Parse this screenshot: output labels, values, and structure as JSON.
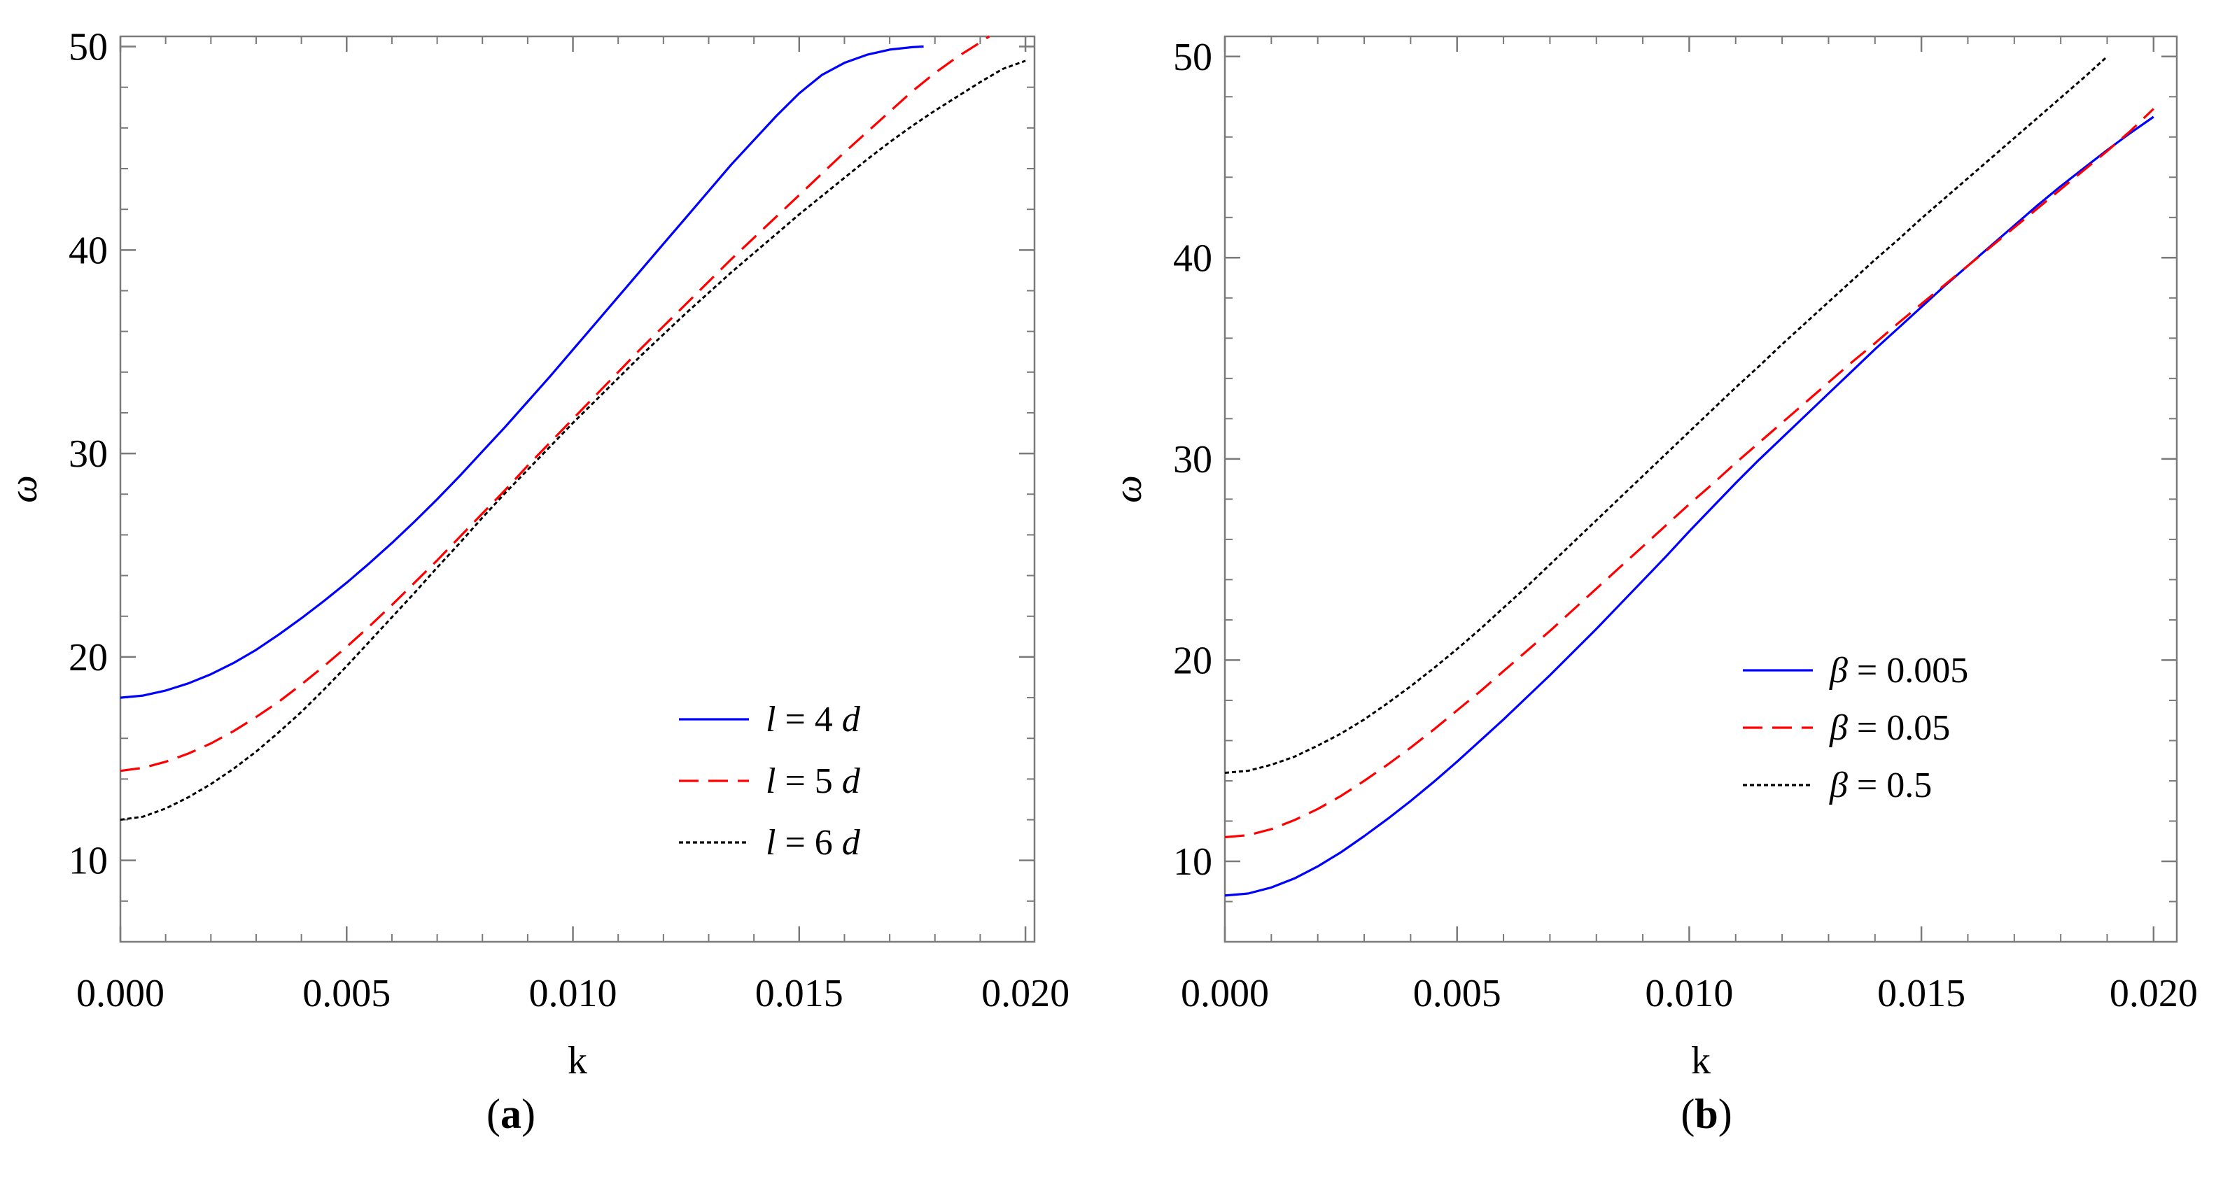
{
  "chart_data": [
    {
      "type": "line",
      "panel_id": "a",
      "caption": "(a)",
      "caption_letter": "a",
      "xlabel": "k",
      "ylabel": "ω",
      "xlim": [
        0.0,
        0.0202
      ],
      "ylim": [
        6.0,
        50.5
      ],
      "xticks": [
        0.0,
        0.005,
        0.01,
        0.015,
        0.02
      ],
      "xtick_labels": [
        "0.000",
        "0.005",
        "0.010",
        "0.015",
        "0.020"
      ],
      "yticks": [
        10,
        20,
        30,
        40,
        50
      ],
      "ytick_labels": [
        "10",
        "20",
        "30",
        "40",
        "50"
      ],
      "legend_position": "lower-right",
      "series": [
        {
          "name": "l = 4 d",
          "var": "l",
          "value": "4",
          "unit": "d",
          "color": "#0000ff",
          "style": "solid",
          "x": [
            0.0,
            0.0005,
            0.001,
            0.0015,
            0.002,
            0.0025,
            0.003,
            0.0035,
            0.004,
            0.0045,
            0.005,
            0.0055,
            0.006,
            0.0065,
            0.007,
            0.0075,
            0.008,
            0.0085,
            0.009,
            0.0095,
            0.01,
            0.0105,
            0.011,
            0.0115,
            0.012,
            0.0125,
            0.013,
            0.0135,
            0.014,
            0.0145,
            0.015,
            0.0155,
            0.016,
            0.0165,
            0.017,
            0.0175,
            0.01775
          ],
          "values": [
            18.0,
            18.1,
            18.35,
            18.7,
            19.15,
            19.7,
            20.35,
            21.1,
            21.9,
            22.75,
            23.65,
            24.6,
            25.6,
            26.65,
            27.75,
            28.9,
            30.1,
            31.3,
            32.55,
            33.8,
            35.1,
            36.4,
            37.7,
            39.0,
            40.3,
            41.6,
            42.9,
            44.2,
            45.4,
            46.6,
            47.7,
            48.6,
            49.2,
            49.6,
            49.85,
            49.97,
            50.0
          ]
        },
        {
          "name": "l = 5 d",
          "var": "l",
          "value": "5",
          "unit": "d",
          "color": "#ff0000",
          "style": "dashed",
          "x": [
            0.0,
            0.0005,
            0.001,
            0.0015,
            0.002,
            0.0025,
            0.003,
            0.0035,
            0.004,
            0.0045,
            0.005,
            0.0055,
            0.006,
            0.0065,
            0.007,
            0.0075,
            0.008,
            0.0085,
            0.009,
            0.0095,
            0.01,
            0.0105,
            0.011,
            0.0115,
            0.012,
            0.0125,
            0.013,
            0.0135,
            0.014,
            0.0145,
            0.015,
            0.0155,
            0.016,
            0.0165,
            0.017,
            0.0175,
            0.018,
            0.0185,
            0.019,
            0.0192
          ],
          "values": [
            14.4,
            14.55,
            14.85,
            15.25,
            15.75,
            16.35,
            17.05,
            17.8,
            18.65,
            19.55,
            20.5,
            21.5,
            22.55,
            23.65,
            24.75,
            25.9,
            27.05,
            28.2,
            29.4,
            30.55,
            31.7,
            32.85,
            34.0,
            35.15,
            36.25,
            37.35,
            38.45,
            39.55,
            40.6,
            41.65,
            42.7,
            43.75,
            44.8,
            45.8,
            46.8,
            47.8,
            48.7,
            49.5,
            50.2,
            50.5
          ]
        },
        {
          "name": "l = 6 d",
          "var": "l",
          "value": "6",
          "unit": "d",
          "color": "#000000",
          "style": "dotted",
          "x": [
            0.0,
            0.0005,
            0.001,
            0.0015,
            0.002,
            0.0025,
            0.003,
            0.0035,
            0.004,
            0.0045,
            0.005,
            0.0055,
            0.006,
            0.0065,
            0.007,
            0.0075,
            0.008,
            0.0085,
            0.009,
            0.0095,
            0.01,
            0.0105,
            0.011,
            0.0115,
            0.012,
            0.0125,
            0.013,
            0.0135,
            0.014,
            0.0145,
            0.015,
            0.0155,
            0.016,
            0.0165,
            0.017,
            0.0175,
            0.018,
            0.0185,
            0.019,
            0.0195,
            0.02
          ],
          "values": [
            12.0,
            12.15,
            12.55,
            13.1,
            13.75,
            14.5,
            15.35,
            16.3,
            17.3,
            18.4,
            19.55,
            20.75,
            21.95,
            23.15,
            24.4,
            25.6,
            26.85,
            28.05,
            29.2,
            30.35,
            31.5,
            32.6,
            33.7,
            34.8,
            35.85,
            36.9,
            37.9,
            38.9,
            39.85,
            40.8,
            41.75,
            42.65,
            43.55,
            44.45,
            45.3,
            46.1,
            46.85,
            47.55,
            48.25,
            48.9,
            49.3
          ]
        }
      ]
    },
    {
      "type": "line",
      "panel_id": "b",
      "caption": "(b)",
      "caption_letter": "b",
      "xlabel": "k",
      "ylabel": "ω",
      "xlim": [
        0.0,
        0.0205
      ],
      "ylim": [
        6.0,
        51.0
      ],
      "xticks": [
        0.0,
        0.005,
        0.01,
        0.015,
        0.02
      ],
      "xtick_labels": [
        "0.000",
        "0.005",
        "0.010",
        "0.015",
        "0.020"
      ],
      "yticks": [
        10,
        20,
        30,
        40,
        50
      ],
      "ytick_labels": [
        "10",
        "20",
        "30",
        "40",
        "50"
      ],
      "legend_position": "center-right",
      "series": [
        {
          "name": "β = 0.005",
          "var": "β",
          "value": "0.005",
          "unit": "",
          "color": "#0000ff",
          "style": "solid",
          "x": [
            0.0,
            0.0005,
            0.001,
            0.0015,
            0.002,
            0.0025,
            0.003,
            0.0035,
            0.004,
            0.0045,
            0.005,
            0.0055,
            0.006,
            0.0065,
            0.007,
            0.0075,
            0.008,
            0.0085,
            0.009,
            0.0095,
            0.01,
            0.0105,
            0.011,
            0.0115,
            0.012,
            0.0125,
            0.013,
            0.0135,
            0.014,
            0.0145,
            0.015,
            0.0155,
            0.016,
            0.0165,
            0.017,
            0.0175,
            0.018,
            0.0185,
            0.019,
            0.0195,
            0.02
          ],
          "values": [
            8.3,
            8.4,
            8.7,
            9.15,
            9.75,
            10.45,
            11.25,
            12.1,
            13.0,
            13.95,
            14.95,
            16.0,
            17.05,
            18.15,
            19.25,
            20.4,
            21.55,
            22.75,
            23.95,
            25.15,
            26.4,
            27.6,
            28.8,
            29.95,
            31.05,
            32.15,
            33.25,
            34.35,
            35.45,
            36.5,
            37.55,
            38.6,
            39.6,
            40.6,
            41.6,
            42.6,
            43.55,
            44.45,
            45.35,
            46.2,
            47.0
          ]
        },
        {
          "name": "β = 0.05",
          "var": "β",
          "value": "0.05",
          "unit": "",
          "color": "#ff0000",
          "style": "dashed",
          "x": [
            0.0,
            0.0005,
            0.001,
            0.0015,
            0.002,
            0.0025,
            0.003,
            0.0035,
            0.004,
            0.0045,
            0.005,
            0.0055,
            0.006,
            0.0065,
            0.007,
            0.0075,
            0.008,
            0.0085,
            0.009,
            0.0095,
            0.01,
            0.0105,
            0.011,
            0.0115,
            0.012,
            0.0125,
            0.013,
            0.0135,
            0.014,
            0.0145,
            0.015,
            0.0155,
            0.016,
            0.0165,
            0.017,
            0.0175,
            0.018,
            0.0185,
            0.019,
            0.0195,
            0.02
          ],
          "values": [
            11.2,
            11.3,
            11.6,
            12.05,
            12.6,
            13.25,
            14.0,
            14.8,
            15.65,
            16.55,
            17.5,
            18.45,
            19.45,
            20.45,
            21.45,
            22.5,
            23.55,
            24.6,
            25.65,
            26.7,
            27.75,
            28.75,
            29.8,
            30.8,
            31.8,
            32.8,
            33.8,
            34.8,
            35.75,
            36.75,
            37.7,
            38.65,
            39.6,
            40.55,
            41.5,
            42.45,
            43.4,
            44.35,
            45.3,
            46.3,
            47.4
          ]
        },
        {
          "name": "β = 0.5",
          "var": "β",
          "value": "0.5",
          "unit": "",
          "color": "#000000",
          "style": "dotted",
          "x": [
            0.0,
            0.0005,
            0.001,
            0.0015,
            0.002,
            0.0025,
            0.003,
            0.0035,
            0.004,
            0.0045,
            0.005,
            0.0055,
            0.006,
            0.0065,
            0.007,
            0.0075,
            0.008,
            0.0085,
            0.009,
            0.0095,
            0.01,
            0.0105,
            0.011,
            0.0115,
            0.012,
            0.0125,
            0.013,
            0.0135,
            0.014,
            0.0145,
            0.015,
            0.0155,
            0.016,
            0.0165,
            0.017,
            0.0175,
            0.018,
            0.0185,
            0.019
          ],
          "values": [
            14.4,
            14.5,
            14.8,
            15.2,
            15.75,
            16.35,
            17.05,
            17.85,
            18.7,
            19.6,
            20.55,
            21.55,
            22.6,
            23.65,
            24.75,
            25.85,
            26.95,
            28.05,
            29.15,
            30.25,
            31.35,
            32.45,
            33.55,
            34.6,
            35.7,
            36.75,
            37.8,
            38.85,
            39.9,
            40.9,
            41.95,
            42.95,
            43.95,
            44.95,
            45.95,
            46.95,
            47.95,
            48.95,
            50.0
          ]
        }
      ]
    }
  ]
}
